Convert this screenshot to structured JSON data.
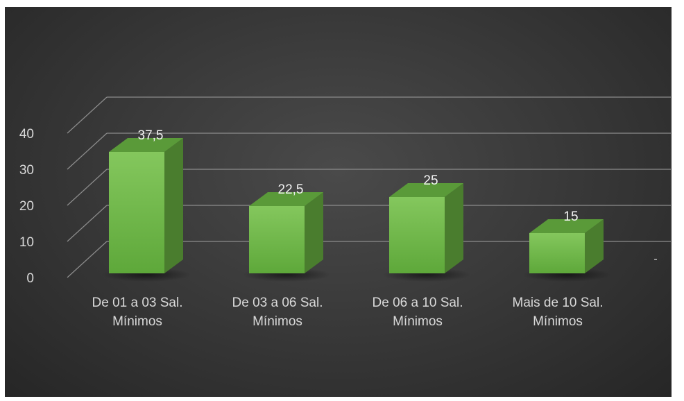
{
  "chart_data": {
    "type": "bar",
    "categories": [
      [
        "De 01 a 03 Sal.",
        "Mínimos"
      ],
      [
        "De 03 a 06 Sal.",
        "Mínimos"
      ],
      [
        "De 06 a 10 Sal.",
        "Mínimos"
      ],
      [
        "Mais de 10 Sal.",
        "Mínimos"
      ]
    ],
    "values": [
      37.5,
      22.5,
      25,
      15
    ],
    "value_labels": [
      "37,5",
      "22,5",
      "25",
      "15"
    ],
    "y_ticks": [
      "0",
      "10",
      "20",
      "30",
      "40"
    ],
    "depth_axis_label": "-",
    "ylim": [
      0,
      40
    ],
    "style": "3d-columns",
    "grid": true,
    "colors": {
      "bar_front": "#6fb64a",
      "bar_front_light": "#83c95b",
      "bar_top": "#5a9a39",
      "bar_side": "#4a7d2e",
      "gridline": "#8c8c8c",
      "text": "#d9d9d9"
    }
  }
}
